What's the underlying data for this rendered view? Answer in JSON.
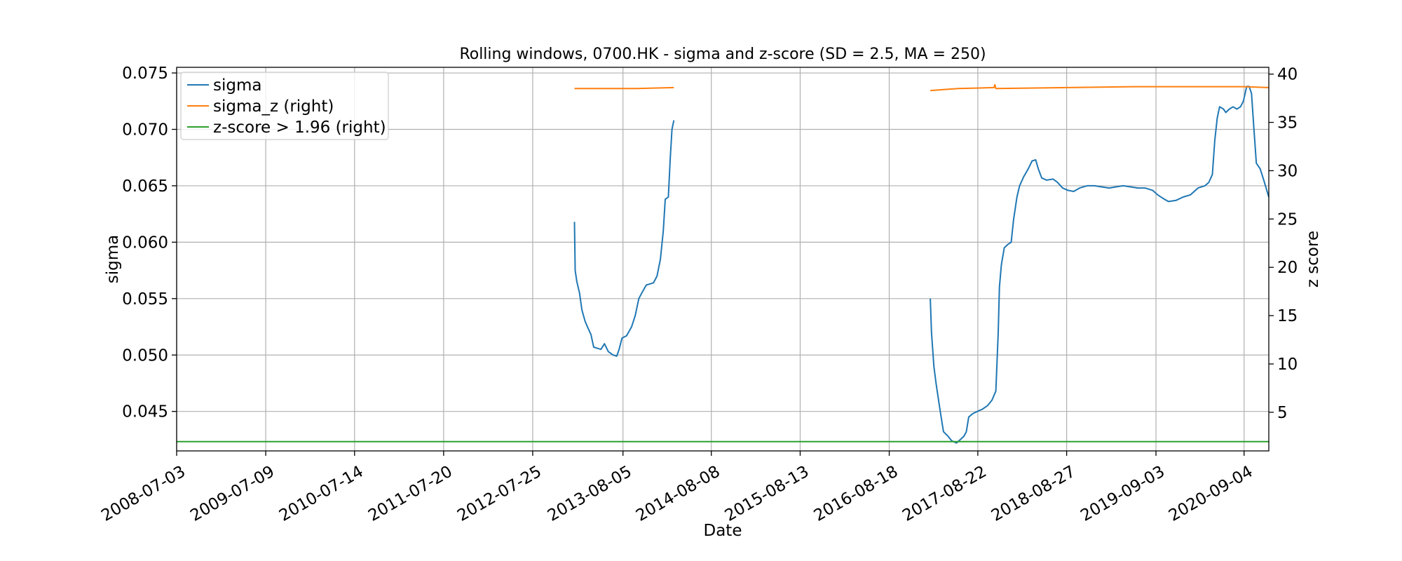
{
  "chart_data": {
    "type": "line",
    "title": "Rolling windows, 0700.HK - sigma and z-score (SD = 2.5, MA = 250)",
    "xlabel": "Date",
    "ylabel": "sigma",
    "ylabel_right": "z score",
    "ylim": [
      0.0415,
      0.0755
    ],
    "ylim_right": [
      1.0,
      40.7
    ],
    "yticks": [
      "0.045",
      "0.050",
      "0.055",
      "0.060",
      "0.065",
      "0.070",
      "0.075"
    ],
    "yticks_right": [
      "5",
      "10",
      "15",
      "20",
      "25",
      "30",
      "35",
      "40"
    ],
    "xlim": [
      "2008-07-03",
      "2020-12-16"
    ],
    "xticks": [
      "2008-07-03",
      "2009-07-09",
      "2010-07-14",
      "2011-07-20",
      "2012-07-25",
      "2013-08-05",
      "2014-08-08",
      "2015-08-13",
      "2016-08-18",
      "2017-08-22",
      "2018-08-27",
      "2019-09-03",
      "2020-09-04"
    ],
    "grid": true,
    "legend": {
      "position": "top-left",
      "entries": [
        "sigma",
        "sigma_z (right)",
        "z-score > 1.96 (right)"
      ]
    },
    "series": [
      {
        "name": "sigma",
        "axis": "left",
        "color": "#1f77b4",
        "segments": [
          [
            [
              "2013-01-15",
              0.0618
            ],
            [
              "2013-01-18",
              0.0575
            ],
            [
              "2013-01-25",
              0.0565
            ],
            [
              "2013-02-05",
              0.0555
            ],
            [
              "2013-02-15",
              0.054
            ],
            [
              "2013-02-28",
              0.053
            ],
            [
              "2013-03-10",
              0.0525
            ],
            [
              "2013-03-25",
              0.0518
            ],
            [
              "2013-04-05",
              0.0507
            ],
            [
              "2013-04-20",
              0.0506
            ],
            [
              "2013-05-05",
              0.0505
            ],
            [
              "2013-05-20",
              0.051
            ],
            [
              "2013-06-05",
              0.0503
            ],
            [
              "2013-06-25",
              0.05
            ],
            [
              "2013-07-10",
              0.0499
            ],
            [
              "2013-07-20",
              0.0505
            ],
            [
              "2013-08-01",
              0.0515
            ],
            [
              "2013-08-20",
              0.0517
            ],
            [
              "2013-09-10",
              0.0525
            ],
            [
              "2013-09-25",
              0.0535
            ],
            [
              "2013-10-10",
              0.055
            ],
            [
              "2013-10-25",
              0.0556
            ],
            [
              "2013-11-10",
              0.0562
            ],
            [
              "2013-11-25",
              0.0563
            ],
            [
              "2013-12-10",
              0.0564
            ],
            [
              "2013-12-25",
              0.057
            ],
            [
              "2014-01-08",
              0.0585
            ],
            [
              "2014-01-20",
              0.061
            ],
            [
              "2014-01-28",
              0.0638
            ],
            [
              "2014-02-10",
              0.064
            ],
            [
              "2014-02-18",
              0.0675
            ],
            [
              "2014-02-25",
              0.07
            ],
            [
              "2014-03-05",
              0.0708
            ]
          ],
          [
            [
              "2017-02-05",
              0.055
            ],
            [
              "2017-02-10",
              0.052
            ],
            [
              "2017-02-20",
              0.049
            ],
            [
              "2017-03-01",
              0.0475
            ],
            [
              "2017-03-10",
              0.0462
            ],
            [
              "2017-03-20",
              0.0448
            ],
            [
              "2017-04-01",
              0.0432
            ],
            [
              "2017-04-20",
              0.0428
            ],
            [
              "2017-05-05",
              0.0424
            ],
            [
              "2017-05-25",
              0.0422
            ],
            [
              "2017-06-10",
              0.0425
            ],
            [
              "2017-06-25",
              0.0428
            ],
            [
              "2017-07-05",
              0.0432
            ],
            [
              "2017-07-15",
              0.0445
            ],
            [
              "2017-08-01",
              0.0448
            ],
            [
              "2017-08-20",
              0.045
            ],
            [
              "2017-09-10",
              0.0452
            ],
            [
              "2017-10-01",
              0.0455
            ],
            [
              "2017-10-20",
              0.046
            ],
            [
              "2017-11-05",
              0.0468
            ],
            [
              "2017-11-15",
              0.052
            ],
            [
              "2017-11-20",
              0.056
            ],
            [
              "2017-11-28",
              0.058
            ],
            [
              "2017-12-10",
              0.0595
            ],
            [
              "2017-12-25",
              0.0598
            ],
            [
              "2018-01-08",
              0.06
            ],
            [
              "2018-01-18",
              0.062
            ],
            [
              "2018-02-01",
              0.064
            ],
            [
              "2018-02-12",
              0.065
            ],
            [
              "2018-03-01",
              0.0658
            ],
            [
              "2018-03-20",
              0.0665
            ],
            [
              "2018-04-05",
              0.0672
            ],
            [
              "2018-04-20",
              0.0673
            ],
            [
              "2018-05-01",
              0.0665
            ],
            [
              "2018-05-15",
              0.0657
            ],
            [
              "2018-06-05",
              0.0655
            ],
            [
              "2018-07-01",
              0.0656
            ],
            [
              "2018-07-20",
              0.0653
            ],
            [
              "2018-08-10",
              0.0648
            ],
            [
              "2018-09-01",
              0.0646
            ],
            [
              "2018-09-25",
              0.0645
            ],
            [
              "2018-10-20",
              0.0648
            ],
            [
              "2018-11-20",
              0.065
            ],
            [
              "2018-12-20",
              0.065
            ],
            [
              "2019-01-20",
              0.0649
            ],
            [
              "2019-02-20",
              0.0648
            ],
            [
              "2019-03-20",
              0.0649
            ],
            [
              "2019-04-20",
              0.065
            ],
            [
              "2019-05-20",
              0.0649
            ],
            [
              "2019-06-20",
              0.0648
            ],
            [
              "2019-07-20",
              0.0648
            ],
            [
              "2019-08-20",
              0.0646
            ],
            [
              "2019-09-10",
              0.0642
            ],
            [
              "2019-10-01",
              0.0639
            ],
            [
              "2019-10-25",
              0.0636
            ],
            [
              "2019-11-25",
              0.0637
            ],
            [
              "2019-12-25",
              0.064
            ],
            [
              "2020-01-25",
              0.0642
            ],
            [
              "2020-02-25",
              0.0648
            ],
            [
              "2020-03-25",
              0.065
            ],
            [
              "2020-04-10",
              0.0653
            ],
            [
              "2020-04-25",
              0.066
            ],
            [
              "2020-05-05",
              0.069
            ],
            [
              "2020-05-15",
              0.071
            ],
            [
              "2020-05-25",
              0.072
            ],
            [
              "2020-06-10",
              0.0718
            ],
            [
              "2020-06-20",
              0.0715
            ],
            [
              "2020-07-05",
              0.0718
            ],
            [
              "2020-07-20",
              0.072
            ],
            [
              "2020-08-05",
              0.0718
            ],
            [
              "2020-08-20",
              0.072
            ],
            [
              "2020-09-01",
              0.0725
            ],
            [
              "2020-09-15",
              0.0738
            ],
            [
              "2020-09-25",
              0.0738
            ],
            [
              "2020-10-05",
              0.0732
            ],
            [
              "2020-10-15",
              0.07
            ],
            [
              "2020-10-25",
              0.067
            ],
            [
              "2020-11-10",
              0.0665
            ],
            [
              "2020-11-25",
              0.0655
            ],
            [
              "2020-12-16",
              0.064
            ]
          ]
        ]
      },
      {
        "name": "sigma_z (right)",
        "axis": "right",
        "color": "#ff7f0e",
        "segments": [
          [
            [
              "2013-01-15",
              38.5
            ],
            [
              "2013-06-01",
              38.5
            ],
            [
              "2013-10-01",
              38.5
            ],
            [
              "2014-03-05",
              38.6
            ]
          ],
          [
            [
              "2017-02-05",
              38.3
            ],
            [
              "2017-06-01",
              38.5
            ],
            [
              "2017-10-28",
              38.6
            ],
            [
              "2017-11-01",
              38.9
            ],
            [
              "2017-11-05",
              38.5
            ],
            [
              "2018-09-01",
              38.6
            ],
            [
              "2019-06-01",
              38.7
            ],
            [
              "2020-09-01",
              38.7
            ],
            [
              "2020-12-16",
              38.6
            ]
          ]
        ]
      },
      {
        "name": "z-score > 1.96 (right)",
        "axis": "right",
        "color": "#2ca02c",
        "segments": [
          [
            [
              "2008-07-03",
              1.96
            ],
            [
              "2020-12-16",
              1.96
            ]
          ]
        ]
      }
    ]
  }
}
